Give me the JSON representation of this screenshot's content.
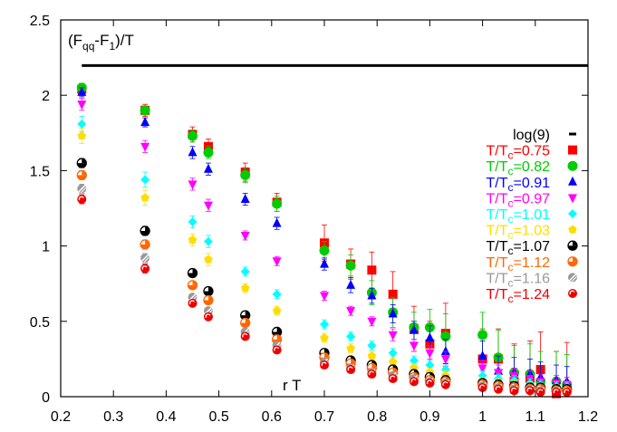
{
  "chart_data": {
    "type": "scatter",
    "title": "",
    "ylabel_main": "(F",
    "ylabel_sub1": "qq",
    "ylabel_mid": "-F",
    "ylabel_sub2": "1",
    "ylabel_tail": ")/T",
    "xlabel": "r T",
    "xlim": [
      0.2,
      1.2
    ],
    "ylim": [
      0,
      2.5
    ],
    "xticks": [
      "0.2",
      "0.3",
      "0.4",
      "0.5",
      "0.6",
      "0.7",
      "0.8",
      "0.9",
      "1",
      "1.1",
      "1.2"
    ],
    "yticks": [
      "0",
      "0.5",
      "1",
      "1.5",
      "2",
      "2.5"
    ],
    "xtick_values": [
      0.2,
      0.3,
      0.4,
      0.5,
      0.6,
      0.7,
      0.8,
      0.9,
      1.0,
      1.1,
      1.2
    ],
    "ytick_values": [
      0,
      0.5,
      1,
      1.5,
      2,
      2.5
    ],
    "grid": false,
    "legend_position": "right",
    "reference_line": {
      "label": "log(9)",
      "value": 2.197,
      "x_start": 0.24,
      "color": "#000000"
    },
    "series": [
      {
        "name": "T/T_c=0.75",
        "prefix": "T/T",
        "sub": "c",
        "suffix": "=0.75",
        "color": "#ff0000",
        "marker": "square",
        "x": [
          0.24,
          0.36,
          0.45,
          0.48,
          0.55,
          0.61,
          0.7,
          0.75,
          0.79,
          0.83,
          0.87,
          0.9,
          0.93,
          1.0,
          1.03,
          1.06,
          1.09,
          1.11,
          1.14,
          1.16
        ],
        "y": [
          2.04,
          1.9,
          1.74,
          1.66,
          1.49,
          1.29,
          1.02,
          0.88,
          0.84,
          0.68,
          0.45,
          0.35,
          0.42,
          0.25,
          0.25,
          0.1,
          0.12,
          0.18,
          0.02,
          0.06
        ],
        "err": [
          0.04,
          0.04,
          0.05,
          0.05,
          0.06,
          0.06,
          0.12,
          0.1,
          0.12,
          0.15,
          0.15,
          0.15,
          0.2,
          0.2,
          0.2,
          0.25,
          0.25,
          0.25,
          0.28,
          0.3
        ]
      },
      {
        "name": "T/T_c=0.82",
        "prefix": "T/T",
        "sub": "c",
        "suffix": "=0.82",
        "color": "#00cc00",
        "marker": "circle",
        "x": [
          0.24,
          0.36,
          0.45,
          0.48,
          0.55,
          0.61,
          0.7,
          0.75,
          0.79,
          0.83,
          0.87,
          0.9,
          0.93,
          1.0,
          1.03,
          1.06,
          1.09,
          1.11,
          1.14,
          1.16
        ],
        "y": [
          2.05,
          1.9,
          1.73,
          1.62,
          1.47,
          1.28,
          0.97,
          0.87,
          0.69,
          0.56,
          0.46,
          0.46,
          0.4,
          0.41,
          0.26,
          0.16,
          0.15,
          0.1,
          0.1,
          0.08
        ],
        "err": [
          0.03,
          0.03,
          0.04,
          0.04,
          0.05,
          0.05,
          0.06,
          0.07,
          0.08,
          0.1,
          0.1,
          0.12,
          0.15,
          0.15,
          0.18,
          0.18,
          0.2,
          0.2,
          0.2,
          0.2
        ]
      },
      {
        "name": "T/T_c=0.91",
        "prefix": "T/T",
        "sub": "c",
        "suffix": "=0.91",
        "color": "#0000ff",
        "marker": "triangle-up",
        "x": [
          0.24,
          0.36,
          0.45,
          0.48,
          0.55,
          0.61,
          0.7,
          0.75,
          0.79,
          0.83,
          0.87,
          0.9,
          0.93,
          1.0,
          1.03,
          1.06,
          1.09,
          1.11,
          1.14,
          1.16
        ],
        "y": [
          2.02,
          1.82,
          1.62,
          1.51,
          1.31,
          1.15,
          0.88,
          0.74,
          0.67,
          0.55,
          0.44,
          0.39,
          0.3,
          0.27,
          0.17,
          0.16,
          0.15,
          0.13,
          0.11,
          0.1
        ],
        "err": [
          0.03,
          0.03,
          0.04,
          0.04,
          0.04,
          0.04,
          0.04,
          0.05,
          0.05,
          0.06,
          0.06,
          0.08,
          0.08,
          0.1,
          0.1,
          0.1,
          0.1,
          0.1,
          0.1,
          0.1
        ]
      },
      {
        "name": "T/T_c=0.97",
        "prefix": "T/T",
        "sub": "c",
        "suffix": "=0.97",
        "color": "#ff00ff",
        "marker": "triangle-down",
        "x": [
          0.24,
          0.36,
          0.45,
          0.48,
          0.55,
          0.61,
          0.7,
          0.75,
          0.79,
          0.83,
          0.87,
          0.9,
          0.93,
          1.0,
          1.03,
          1.06,
          1.09,
          1.11,
          1.14,
          1.16
        ],
        "y": [
          1.94,
          1.66,
          1.41,
          1.27,
          1.07,
          0.9,
          0.67,
          0.57,
          0.5,
          0.41,
          0.34,
          0.29,
          0.25,
          0.19,
          0.16,
          0.14,
          0.12,
          0.1,
          0.09,
          0.08
        ],
        "err": [
          0.04,
          0.04,
          0.04,
          0.04,
          0.03,
          0.03,
          0.03,
          0.03,
          0.03,
          0.04,
          0.04,
          0.04,
          0.05,
          0.05,
          0.05,
          0.05,
          0.05,
          0.05,
          0.05,
          0.05
        ]
      },
      {
        "name": "T/T_c=1.01",
        "prefix": "T/T",
        "sub": "c",
        "suffix": "=1.01",
        "color": "#00ffff",
        "marker": "diamond",
        "x": [
          0.24,
          0.36,
          0.45,
          0.48,
          0.55,
          0.61,
          0.7,
          0.75,
          0.79,
          0.83,
          0.87,
          0.9,
          0.93,
          1.0,
          1.03,
          1.06,
          1.09,
          1.11,
          1.14,
          1.16
        ],
        "y": [
          1.81,
          1.44,
          1.16,
          1.03,
          0.83,
          0.68,
          0.48,
          0.4,
          0.34,
          0.29,
          0.24,
          0.21,
          0.18,
          0.14,
          0.12,
          0.11,
          0.09,
          0.08,
          0.07,
          0.07
        ],
        "err": [
          0.05,
          0.05,
          0.04,
          0.04,
          0.03,
          0.03,
          0.03,
          0.03,
          0.03,
          0.03,
          0.03,
          0.03,
          0.03,
          0.03,
          0.03,
          0.03,
          0.03,
          0.03,
          0.03,
          0.03
        ]
      },
      {
        "name": "T/T_c=1.03",
        "prefix": "T/T",
        "sub": "c",
        "suffix": "=1.03",
        "color": "#ffdd00",
        "marker": "pentagon",
        "x": [
          0.24,
          0.36,
          0.45,
          0.48,
          0.55,
          0.61,
          0.7,
          0.75,
          0.79,
          0.83,
          0.87,
          0.9,
          0.93,
          1.0,
          1.03,
          1.06,
          1.09,
          1.11,
          1.14,
          1.16
        ],
        "y": [
          1.73,
          1.32,
          1.04,
          0.91,
          0.72,
          0.57,
          0.39,
          0.32,
          0.27,
          0.23,
          0.19,
          0.16,
          0.14,
          0.1,
          0.09,
          0.08,
          0.07,
          0.06,
          0.05,
          0.05
        ],
        "err": [
          0.05,
          0.05,
          0.04,
          0.04,
          0.03,
          0.03,
          0.03,
          0.03,
          0.03,
          0.03,
          0.03,
          0.03,
          0.03,
          0.03,
          0.03,
          0.03,
          0.03,
          0.03,
          0.03,
          0.03
        ]
      },
      {
        "name": "T/T_c=1.07",
        "prefix": "T/T",
        "sub": "c",
        "suffix": "=1.07",
        "color": "#000000",
        "marker": "half-circle",
        "x": [
          0.24,
          0.36,
          0.45,
          0.48,
          0.55,
          0.61,
          0.7,
          0.75,
          0.79,
          0.83,
          0.87,
          0.9,
          0.93,
          1.0,
          1.03,
          1.06,
          1.09,
          1.11,
          1.14,
          1.16
        ],
        "y": [
          1.55,
          1.1,
          0.82,
          0.7,
          0.54,
          0.43,
          0.29,
          0.24,
          0.21,
          0.18,
          0.15,
          0.13,
          0.11,
          0.09,
          0.08,
          0.07,
          0.06,
          0.06,
          0.05,
          0.05
        ],
        "err": [
          0.03,
          0.03,
          0.02,
          0.02,
          0.02,
          0.02,
          0.02,
          0.02,
          0.02,
          0.02,
          0.02,
          0.02,
          0.02,
          0.02,
          0.02,
          0.02,
          0.02,
          0.02,
          0.02,
          0.02
        ]
      },
      {
        "name": "T/T_c=1.12",
        "prefix": "T/T",
        "sub": "c",
        "suffix": "=1.12",
        "color": "#ff6600",
        "marker": "half-circle",
        "x": [
          0.24,
          0.36,
          0.45,
          0.48,
          0.55,
          0.61,
          0.7,
          0.75,
          0.79,
          0.83,
          0.87,
          0.9,
          0.93,
          1.0,
          1.03,
          1.06,
          1.09,
          1.11,
          1.14,
          1.16
        ],
        "y": [
          1.47,
          1.01,
          0.74,
          0.64,
          0.49,
          0.38,
          0.26,
          0.22,
          0.19,
          0.16,
          0.13,
          0.11,
          0.1,
          0.08,
          0.07,
          0.06,
          0.05,
          0.05,
          0.04,
          0.04
        ],
        "err": [
          0.03,
          0.03,
          0.02,
          0.02,
          0.02,
          0.02,
          0.02,
          0.02,
          0.02,
          0.02,
          0.02,
          0.02,
          0.02,
          0.02,
          0.02,
          0.02,
          0.02,
          0.02,
          0.02,
          0.02
        ]
      },
      {
        "name": "T/T_c=1.16",
        "prefix": "T/T",
        "sub": "c",
        "suffix": "=1.16",
        "color": "#999999",
        "marker": "hatched-circle",
        "x": [
          0.24,
          0.36,
          0.45,
          0.48,
          0.55,
          0.61,
          0.7,
          0.75,
          0.79,
          0.83,
          0.87,
          0.9,
          0.93,
          1.0,
          1.03,
          1.06,
          1.09,
          1.11,
          1.14,
          1.16
        ],
        "y": [
          1.38,
          0.92,
          0.66,
          0.57,
          0.43,
          0.34,
          0.23,
          0.19,
          0.16,
          0.14,
          0.12,
          0.1,
          0.09,
          0.07,
          0.06,
          0.05,
          0.05,
          0.04,
          0.04,
          0.03
        ],
        "err": [
          0.03,
          0.03,
          0.02,
          0.02,
          0.02,
          0.02,
          0.02,
          0.02,
          0.02,
          0.02,
          0.02,
          0.02,
          0.02,
          0.02,
          0.02,
          0.02,
          0.02,
          0.02,
          0.02,
          0.02
        ]
      },
      {
        "name": "T/T_c=1.24",
        "prefix": "T/T",
        "sub": "c",
        "suffix": "=1.24",
        "color": "#ee0000",
        "marker": "swirl-circle",
        "x": [
          0.24,
          0.36,
          0.45,
          0.48,
          0.55,
          0.61,
          0.7,
          0.75,
          0.79,
          0.83,
          0.87,
          0.9,
          0.93,
          1.0,
          1.03,
          1.06,
          1.09,
          1.11,
          1.14,
          1.16
        ],
        "y": [
          1.31,
          0.85,
          0.62,
          0.53,
          0.4,
          0.31,
          0.21,
          0.18,
          0.15,
          0.12,
          0.1,
          0.09,
          0.08,
          0.06,
          0.05,
          0.04,
          0.04,
          0.03,
          0.03,
          0.03
        ],
        "err": [
          0.03,
          0.03,
          0.02,
          0.02,
          0.02,
          0.02,
          0.02,
          0.02,
          0.02,
          0.02,
          0.02,
          0.02,
          0.02,
          0.02,
          0.02,
          0.02,
          0.02,
          0.02,
          0.02,
          0.02
        ]
      }
    ]
  }
}
